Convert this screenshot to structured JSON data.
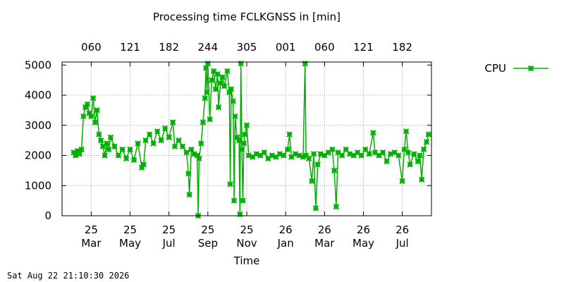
{
  "chart_data": {
    "type": "line",
    "title": "Processing time FCLKGNSS in [min]",
    "xlabel": "Time",
    "ylabel": "",
    "ylim": [
      0,
      5100
    ],
    "y_ticks": [
      0,
      1000,
      2000,
      3000,
      4000,
      5000
    ],
    "grid": true,
    "legend_position": "top-right",
    "x_range": [
      -0.5,
      18.5
    ],
    "x_ticks_bottom": [
      {
        "x": 1,
        "top_label": "25",
        "bottom_label": "Mar"
      },
      {
        "x": 3,
        "top_label": "25",
        "bottom_label": "May"
      },
      {
        "x": 5,
        "top_label": "25",
        "bottom_label": "Jul"
      },
      {
        "x": 7,
        "top_label": "25",
        "bottom_label": "Sep"
      },
      {
        "x": 9,
        "top_label": "25",
        "bottom_label": "Nov"
      },
      {
        "x": 11,
        "top_label": "26",
        "bottom_label": "Jan"
      },
      {
        "x": 13,
        "top_label": "26",
        "bottom_label": "Mar"
      },
      {
        "x": 15,
        "top_label": "26",
        "bottom_label": "May"
      },
      {
        "x": 17,
        "top_label": "26",
        "bottom_label": "Jul"
      }
    ],
    "x_ticks_top": [
      {
        "x": 1,
        "label": "060"
      },
      {
        "x": 3,
        "label": "121"
      },
      {
        "x": 5,
        "label": "182"
      },
      {
        "x": 7,
        "label": "244"
      },
      {
        "x": 9,
        "label": "305"
      },
      {
        "x": 11,
        "label": "001"
      },
      {
        "x": 13,
        "label": "060"
      },
      {
        "x": 15,
        "label": "121"
      },
      {
        "x": 17,
        "label": "182"
      }
    ],
    "series": [
      {
        "name": "CPU",
        "color": "#00b000",
        "marker": "x-cross",
        "points": [
          [
            0.1,
            2100
          ],
          [
            0.2,
            2000
          ],
          [
            0.3,
            2150
          ],
          [
            0.4,
            2050
          ],
          [
            0.5,
            2200
          ],
          [
            0.6,
            3300
          ],
          [
            0.7,
            3600
          ],
          [
            0.8,
            3700
          ],
          [
            0.9,
            3400
          ],
          [
            1.0,
            3300
          ],
          [
            1.1,
            3900
          ],
          [
            1.2,
            3100
          ],
          [
            1.3,
            3500
          ],
          [
            1.4,
            2700
          ],
          [
            1.5,
            2500
          ],
          [
            1.6,
            2300
          ],
          [
            1.7,
            2000
          ],
          [
            1.8,
            2400
          ],
          [
            1.9,
            2200
          ],
          [
            2.0,
            2600
          ],
          [
            2.2,
            2300
          ],
          [
            2.4,
            2000
          ],
          [
            2.6,
            2200
          ],
          [
            2.8,
            1900
          ],
          [
            3.0,
            2200
          ],
          [
            3.2,
            1850
          ],
          [
            3.4,
            2400
          ],
          [
            3.6,
            1600
          ],
          [
            3.7,
            1700
          ],
          [
            3.8,
            2500
          ],
          [
            4.0,
            2700
          ],
          [
            4.2,
            2400
          ],
          [
            4.4,
            2800
          ],
          [
            4.6,
            2500
          ],
          [
            4.8,
            2900
          ],
          [
            5.0,
            2600
          ],
          [
            5.2,
            3100
          ],
          [
            5.3,
            2300
          ],
          [
            5.5,
            2500
          ],
          [
            5.7,
            2300
          ],
          [
            5.9,
            2100
          ],
          [
            6.0,
            1400
          ],
          [
            6.05,
            700
          ],
          [
            6.15,
            2200
          ],
          [
            6.3,
            2050
          ],
          [
            6.45,
            2000
          ],
          [
            6.5,
            0
          ],
          [
            6.55,
            1900
          ],
          [
            6.65,
            2400
          ],
          [
            6.75,
            3100
          ],
          [
            6.85,
            3900
          ],
          [
            6.9,
            4900
          ],
          [
            6.95,
            4100
          ],
          [
            7.0,
            5050
          ],
          [
            7.1,
            3200
          ],
          [
            7.2,
            4500
          ],
          [
            7.3,
            4800
          ],
          [
            7.4,
            4200
          ],
          [
            7.5,
            4700
          ],
          [
            7.55,
            3600
          ],
          [
            7.65,
            4400
          ],
          [
            7.75,
            4600
          ],
          [
            7.85,
            4300
          ],
          [
            8.0,
            4800
          ],
          [
            8.1,
            4100
          ],
          [
            8.15,
            1050
          ],
          [
            8.2,
            4200
          ],
          [
            8.3,
            3800
          ],
          [
            8.35,
            500
          ],
          [
            8.4,
            3300
          ],
          [
            8.5,
            2600
          ],
          [
            8.6,
            2500
          ],
          [
            8.65,
            50
          ],
          [
            8.7,
            5050
          ],
          [
            8.75,
            2200
          ],
          [
            8.8,
            500
          ],
          [
            8.85,
            2400
          ],
          [
            8.9,
            2700
          ],
          [
            9.0,
            3000
          ],
          [
            9.1,
            2000
          ],
          [
            9.3,
            1950
          ],
          [
            9.5,
            2050
          ],
          [
            9.7,
            2000
          ],
          [
            9.9,
            2100
          ],
          [
            10.1,
            1900
          ],
          [
            10.3,
            2000
          ],
          [
            10.5,
            1950
          ],
          [
            10.7,
            2050
          ],
          [
            10.9,
            2000
          ],
          [
            11.1,
            2200
          ],
          [
            11.2,
            2700
          ],
          [
            11.3,
            1950
          ],
          [
            11.5,
            2050
          ],
          [
            11.7,
            2000
          ],
          [
            11.9,
            1950
          ],
          [
            12.0,
            5050
          ],
          [
            12.05,
            2000
          ],
          [
            12.2,
            1900
          ],
          [
            12.35,
            1150
          ],
          [
            12.45,
            2050
          ],
          [
            12.55,
            250
          ],
          [
            12.65,
            1700
          ],
          [
            12.8,
            2050
          ],
          [
            13.0,
            2000
          ],
          [
            13.2,
            2100
          ],
          [
            13.4,
            2200
          ],
          [
            13.5,
            1500
          ],
          [
            13.6,
            300
          ],
          [
            13.7,
            2100
          ],
          [
            13.9,
            2000
          ],
          [
            14.1,
            2200
          ],
          [
            14.3,
            2050
          ],
          [
            14.5,
            2000
          ],
          [
            14.7,
            2100
          ],
          [
            14.9,
            2000
          ],
          [
            15.1,
            2200
          ],
          [
            15.3,
            2050
          ],
          [
            15.5,
            2750
          ],
          [
            15.6,
            2100
          ],
          [
            15.8,
            2000
          ],
          [
            16.0,
            2100
          ],
          [
            16.2,
            1800
          ],
          [
            16.4,
            2050
          ],
          [
            16.6,
            2100
          ],
          [
            16.8,
            2000
          ],
          [
            17.0,
            1150
          ],
          [
            17.1,
            2200
          ],
          [
            17.2,
            2800
          ],
          [
            17.3,
            2100
          ],
          [
            17.4,
            1700
          ],
          [
            17.6,
            2050
          ],
          [
            17.8,
            1800
          ],
          [
            17.9,
            2000
          ],
          [
            18.0,
            1200
          ],
          [
            18.1,
            2200
          ],
          [
            18.25,
            2450
          ],
          [
            18.35,
            2700
          ]
        ]
      }
    ]
  },
  "footer": {
    "timestamp": "Sat Aug 22 21:10:30 2026"
  }
}
